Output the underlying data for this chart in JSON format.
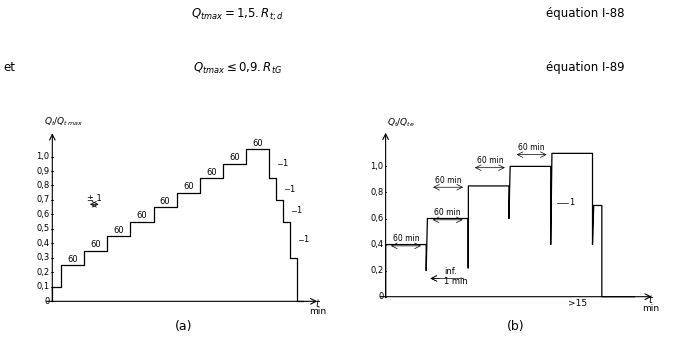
{
  "fig_width": 6.79,
  "fig_height": 3.37,
  "bg_color": "white",
  "top_text1": "$Q_{tmax} = 1{,}5. R_{t;d}$",
  "top_text2": "équation I-88",
  "top_text3": "et",
  "top_text4": "$Q_{tmax} \\leq 0{,}9. R_{tG}$",
  "top_text5": "équation I-89",
  "label_a": "(a)",
  "label_b": "(b)",
  "chart_a": {
    "ylabel": "$Q_t/Q_{t\\,max}$",
    "yticks": [
      0.0,
      0.1,
      0.2,
      0.3,
      0.4,
      0.5,
      0.6,
      0.7,
      0.8,
      0.9,
      1.0
    ],
    "ytick_labels": [
      "0",
      "0,1",
      "0,2",
      "0,3",
      "0,4",
      "0,5",
      "0,6",
      "0,7",
      "0,8",
      "0,9",
      "1,0"
    ],
    "xlabel": "t",
    "xunit": "min",
    "ann_pm1": "± 1"
  },
  "chart_b": {
    "ylabel": "$Q_t/Q_{te}$",
    "yticks": [
      0.0,
      0.2,
      0.4,
      0.6,
      0.8,
      1.0
    ],
    "ytick_labels": [
      "0",
      "0,2",
      "0,4",
      "0,6",
      "0,8",
      "1,0"
    ],
    "xlabel": "t",
    "xunit": "min",
    "ann_inf": "inf.",
    "ann_1min": "1 min",
    "ann_gt15": ">15",
    "ann_1": "1"
  }
}
